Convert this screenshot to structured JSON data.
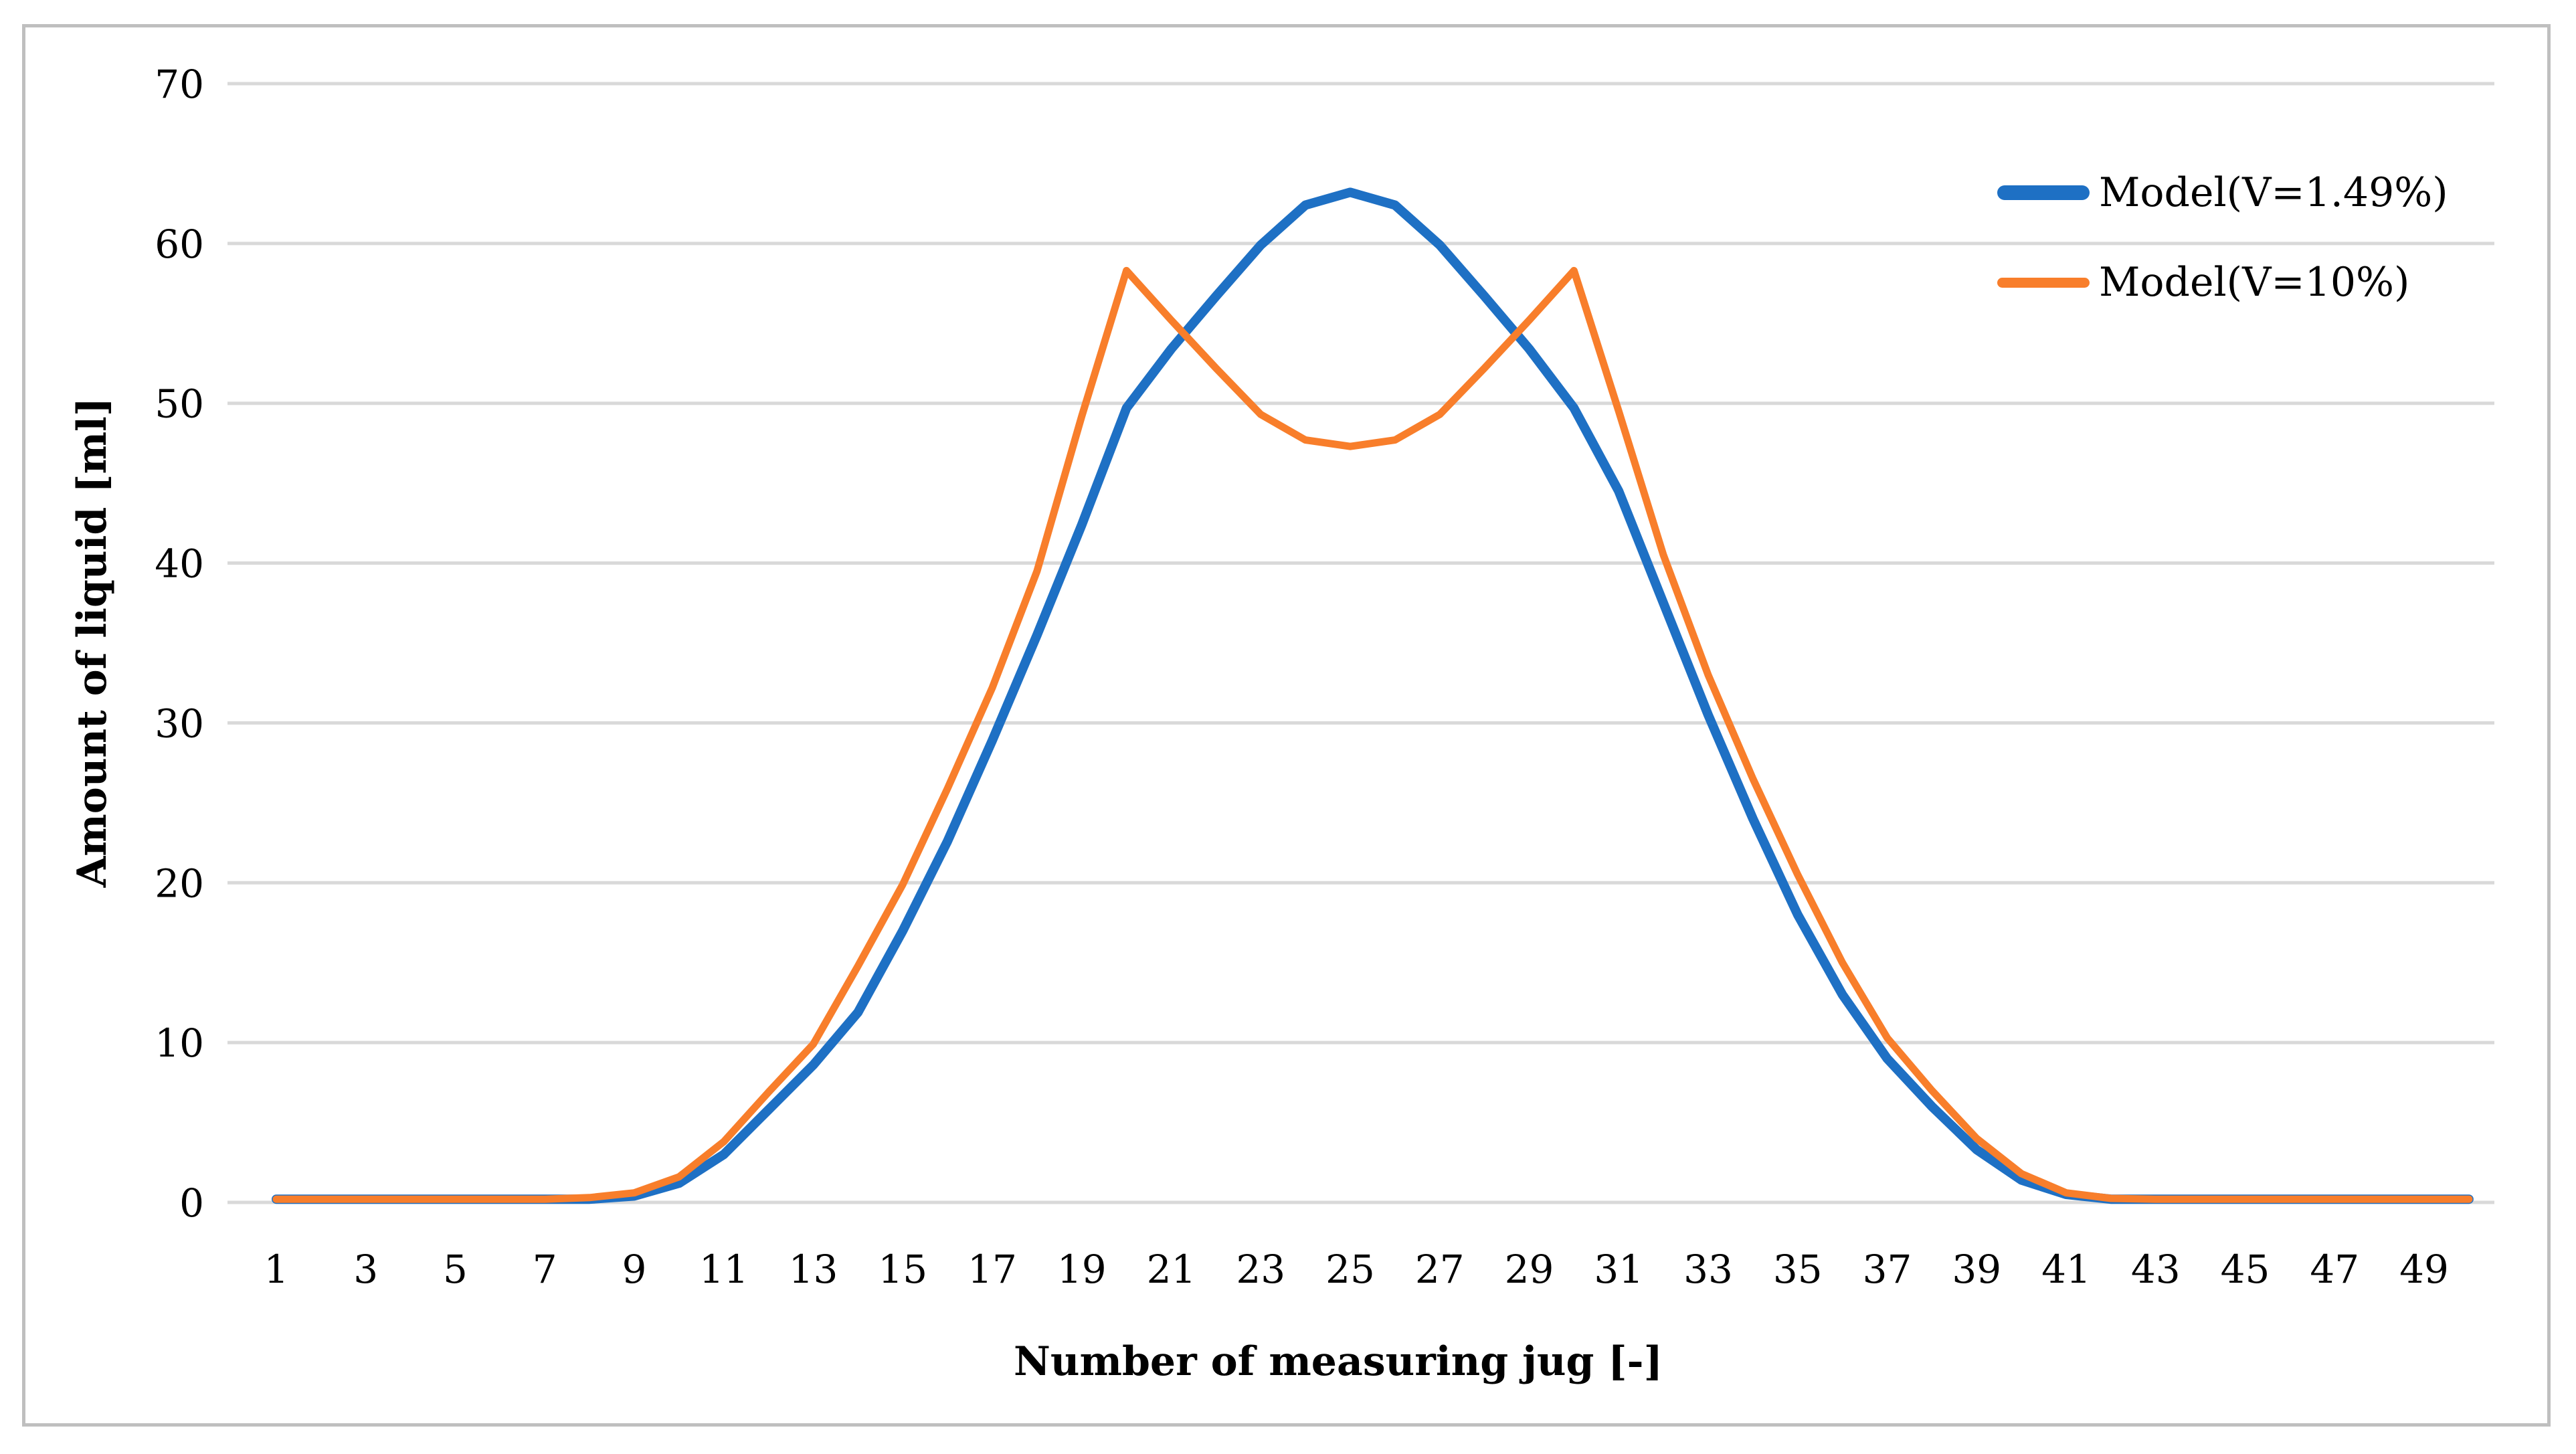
{
  "figure": {
    "background": "#ffffff",
    "frame_color": "#bfbfbf",
    "text_color": "#000000"
  },
  "chart_data": {
    "type": "line",
    "title": "",
    "xlabel": "Number of measuring jug [-]",
    "ylabel": "Amount of liquid [ml]",
    "ylim": [
      0,
      70
    ],
    "y_ticks": [
      0,
      10,
      20,
      30,
      40,
      50,
      60,
      70
    ],
    "x_tick_labels": [
      "1",
      "3",
      "5",
      "7",
      "9",
      "11",
      "13",
      "15",
      "17",
      "19",
      "21",
      "23",
      "25",
      "27",
      "29",
      "31",
      "33",
      "35",
      "37",
      "39",
      "41",
      "43",
      "45",
      "47",
      "49"
    ],
    "grid": "horizontal-only",
    "gridline_color": "#d9d9d9",
    "legend_position": "top-right",
    "x": [
      1,
      2,
      3,
      4,
      5,
      6,
      7,
      8,
      9,
      10,
      11,
      12,
      13,
      14,
      15,
      16,
      17,
      18,
      19,
      20,
      21,
      22,
      23,
      24,
      25,
      26,
      27,
      28,
      29,
      30,
      31,
      32,
      33,
      34,
      35,
      36,
      37,
      38,
      39,
      40,
      41,
      42,
      43,
      44,
      45,
      46,
      47,
      48,
      49,
      50
    ],
    "series": [
      {
        "name": "Model(V=1.49%)",
        "color": "#1e70c4",
        "stroke_width": 14,
        "values": [
          0.2,
          0.2,
          0.2,
          0.2,
          0.2,
          0.2,
          0.2,
          0.2,
          0.4,
          1.2,
          3.0,
          5.8,
          8.6,
          11.9,
          17.0,
          22.6,
          28.9,
          35.5,
          42.4,
          49.7,
          53.4,
          56.7,
          59.9,
          62.4,
          63.2,
          62.4,
          59.9,
          56.7,
          53.4,
          49.7,
          44.5,
          37.5,
          30.5,
          24.0,
          18.0,
          13.0,
          9.0,
          6.0,
          3.3,
          1.4,
          0.5,
          0.2,
          0.2,
          0.2,
          0.2,
          0.2,
          0.2,
          0.2,
          0.2,
          0.2
        ]
      },
      {
        "name": "Model(V=10%)",
        "color": "#f87e2b",
        "stroke_width": 11,
        "values": [
          0.2,
          0.2,
          0.2,
          0.2,
          0.2,
          0.2,
          0.2,
          0.3,
          0.6,
          1.6,
          3.8,
          6.9,
          9.9,
          14.8,
          19.9,
          25.9,
          32.2,
          39.5,
          49.2,
          58.3,
          55.2,
          52.2,
          49.3,
          47.7,
          47.3,
          47.7,
          49.3,
          52.2,
          55.2,
          58.3,
          49.5,
          40.5,
          33.0,
          26.5,
          20.5,
          15.0,
          10.3,
          7.0,
          4.0,
          1.8,
          0.6,
          0.25,
          0.2,
          0.2,
          0.2,
          0.2,
          0.2,
          0.2,
          0.2,
          0.2
        ]
      }
    ]
  }
}
